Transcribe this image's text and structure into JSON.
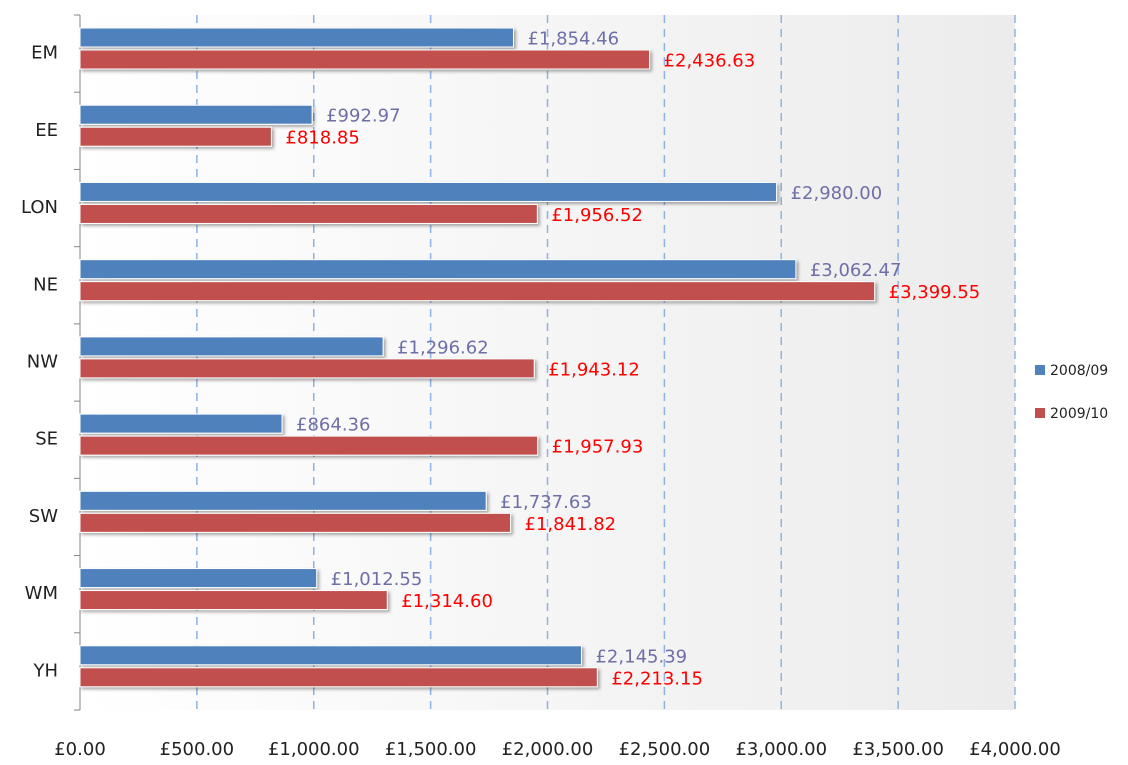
{
  "chart_data": {
    "type": "bar",
    "orientation": "horizontal",
    "categories": [
      "EM",
      "EE",
      "LON",
      "NE",
      "NW",
      "SE",
      "SW",
      "WM",
      "YH"
    ],
    "series": [
      {
        "name": "2008/09",
        "color": "#4f81bd",
        "label_color": "#6f6fa8",
        "values": [
          1854.46,
          992.97,
          2980.0,
          3062.47,
          1296.62,
          864.36,
          1737.63,
          1012.55,
          2145.39
        ],
        "value_labels": [
          "£1,854.46",
          "£992.97",
          "£2,980.00",
          "£3,062.47",
          "£1,296.62",
          "£864.36",
          "£1,737.63",
          "£1,012.55",
          "£2,145.39"
        ]
      },
      {
        "name": "2009/10",
        "color": "#c0504d",
        "label_color": "#ff0000",
        "values": [
          2436.63,
          818.85,
          1956.52,
          3399.55,
          1943.12,
          1957.93,
          1841.82,
          1314.6,
          2213.15
        ],
        "value_labels": [
          "£2,436.63",
          "£818.85",
          "£1,956.52",
          "£3,399.55",
          "£1,943.12",
          "£1,957.93",
          "£1,841.82",
          "£1,314.60",
          "£2,213.15"
        ]
      }
    ],
    "xlim": [
      0,
      4000
    ],
    "xticks": [
      {
        "value": 0,
        "label": "£0.00"
      },
      {
        "value": 500,
        "label": "£500.00"
      },
      {
        "value": 1000,
        "label": "£1,000.00"
      },
      {
        "value": 1500,
        "label": "£1,500.00"
      },
      {
        "value": 2000,
        "label": "£2,000.00"
      },
      {
        "value": 2500,
        "label": "£2,500.00"
      },
      {
        "value": 3000,
        "label": "£3,000.00"
      },
      {
        "value": 3500,
        "label": "£3,500.00"
      },
      {
        "value": 4000,
        "label": "£4,000.00"
      }
    ],
    "grid": true,
    "legend": "right"
  }
}
